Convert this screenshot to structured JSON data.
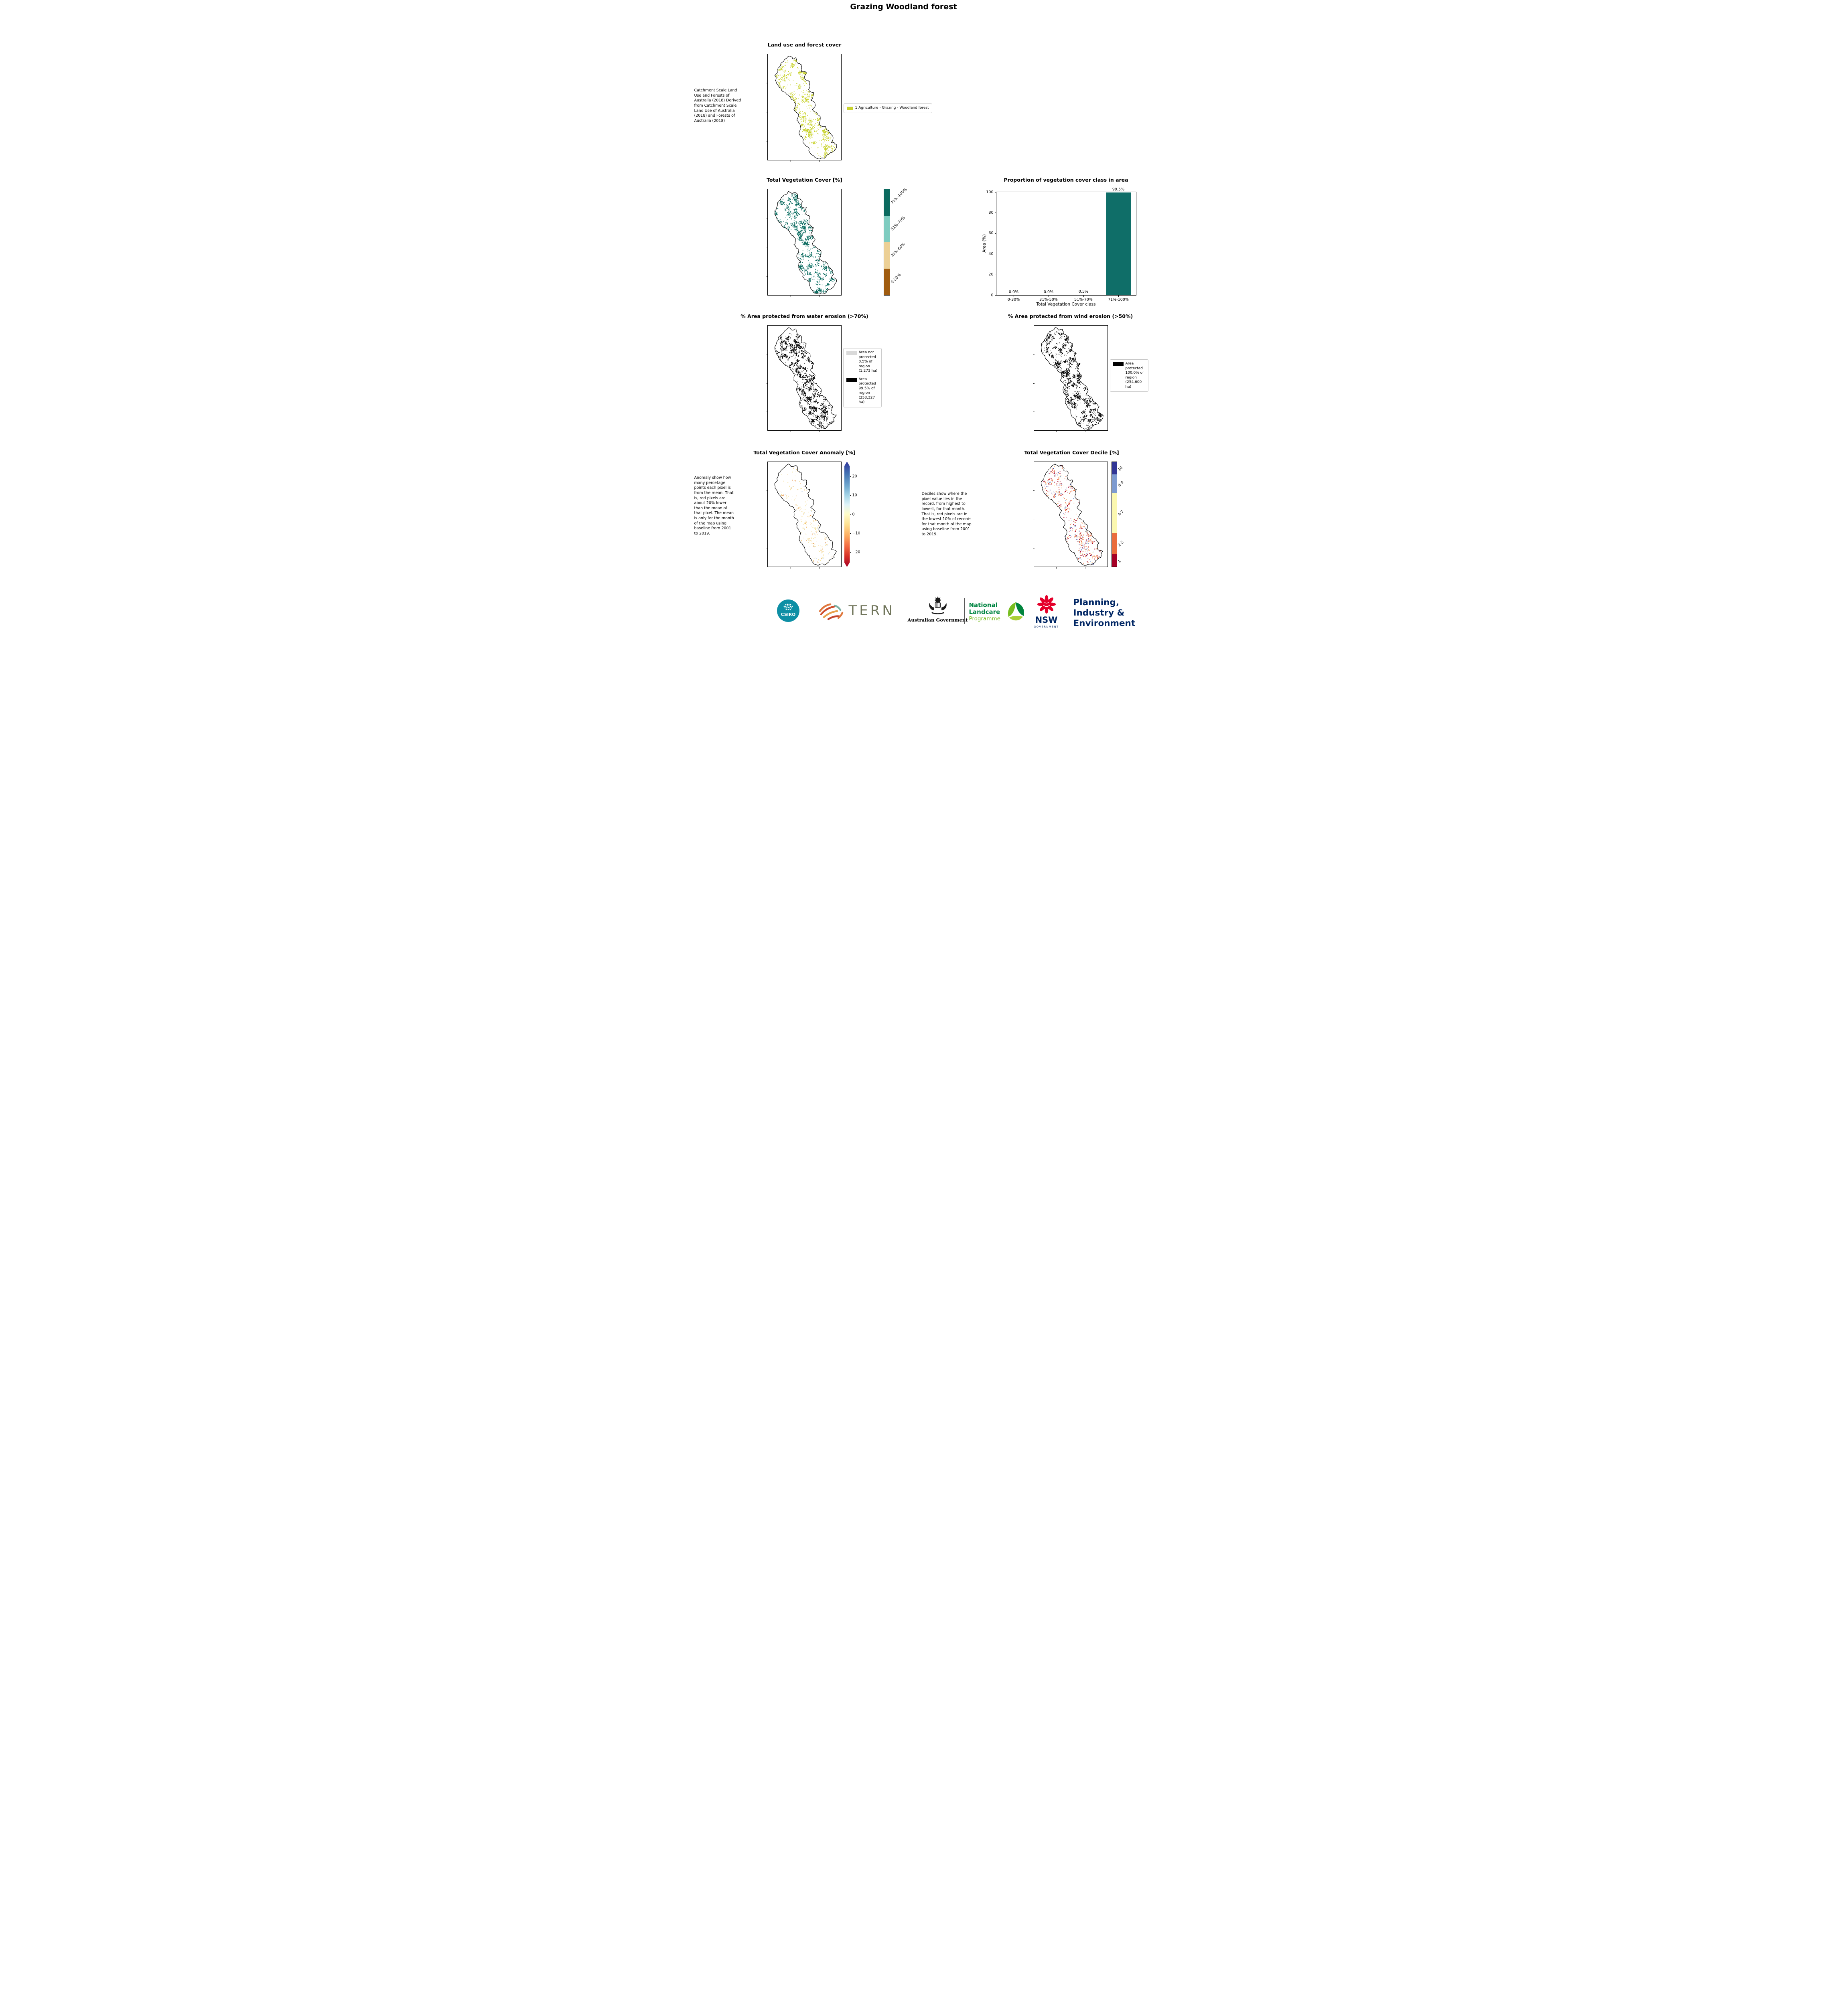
{
  "page": {
    "title": "Grazing Woodland forest"
  },
  "land_use": {
    "title": "Land use and forest cover",
    "note": "Catchment Scale Land Use and Forests of Australia (2018) Derived from Catchment Scale Land Use of Australia (2018) and Forests of Australia (2018)",
    "legend": [
      {
        "label": "1 Agriculture - Grazing - Woodland forest",
        "color": "#c9d32e"
      }
    ]
  },
  "veg_cover": {
    "title": "Total Vegetation Cover [%]",
    "colorbar": [
      {
        "label": "71%-100%",
        "color": "#0b6a5f"
      },
      {
        "label": "51%-70%",
        "color": "#7fccc0"
      },
      {
        "label": "31%-50%",
        "color": "#ecd096"
      },
      {
        "label": "0-30%",
        "color": "#a05c10"
      }
    ]
  },
  "chart_data": {
    "type": "bar",
    "title": "Proportion of vegetation cover class in area",
    "categories": [
      "0-30%",
      "31%-50%",
      "51%-70%",
      "71%-100%"
    ],
    "values": [
      0.0,
      0.0,
      0.5,
      99.5
    ],
    "bar_labels": [
      "0.0%",
      "0.0%",
      "0.5%",
      "99.5%"
    ],
    "xlabel": "Total Vegetation Cover class",
    "ylabel": "Area (%)",
    "ylim": [
      0,
      100
    ],
    "yticks": [
      0,
      20,
      40,
      60,
      80,
      100
    ],
    "bar_color": "#0f6e68",
    "grid": false,
    "legend_position": "none"
  },
  "water_erosion": {
    "title": "% Area protected from water erosion (>70%)",
    "legend": [
      {
        "label": "Area not protected 0.5% of region (1,273 ha)",
        "color": "#d9d9d9"
      },
      {
        "label": "Area protected 99.5% of region (253,327 ha)",
        "color": "#000000"
      }
    ]
  },
  "wind_erosion": {
    "title": "% Area protected from wind erosion (>50%)",
    "legend": [
      {
        "label": "Area protected 100.0% of region (254,600 ha)",
        "color": "#000000"
      }
    ]
  },
  "anomaly": {
    "title": "Total Vegetation Cover Anomaly [%]",
    "note": "Anomaly show how many percetage points each pixel is from the mean. That is, red pixels are about 20% lower than the mean of that pixel. The mean is only for the month of the map using baseline from 2001 to 2019.",
    "colorbar_ticks": [
      "20",
      "10",
      "0",
      "−10",
      "−20"
    ]
  },
  "decile": {
    "title": "Total Vegetation Cover Decile [%]",
    "note": "Deciles show where the pixel value lies in the record, from highest to lowest, for that month. That is, red pixels are in the lowest 10% of records for that month of the map using baseline from 2001 to 2019.",
    "colorbar": [
      {
        "label": "10",
        "color": "#313695",
        "fraction": 0.12
      },
      {
        "label": "8-9",
        "color": "#7e9bd0",
        "fraction": 0.18
      },
      {
        "label": "4-7",
        "color": "#fbf8b0",
        "fraction": 0.38
      },
      {
        "label": "2-3",
        "color": "#ea6c3c",
        "fraction": 0.2
      },
      {
        "label": "1",
        "color": "#a50026",
        "fraction": 0.12
      }
    ]
  },
  "footer": {
    "csiro": "CSIRO",
    "tern": "TERN",
    "aus_gov": "Australian Government",
    "nlp": {
      "line1": "National",
      "line2": "Landcare",
      "line3": "Programme"
    },
    "nsw": {
      "name": "NSW",
      "sub": "GOVERNMENT"
    },
    "pie": {
      "line1": "Planning,",
      "line2": "Industry &",
      "line3": "Environment"
    }
  }
}
